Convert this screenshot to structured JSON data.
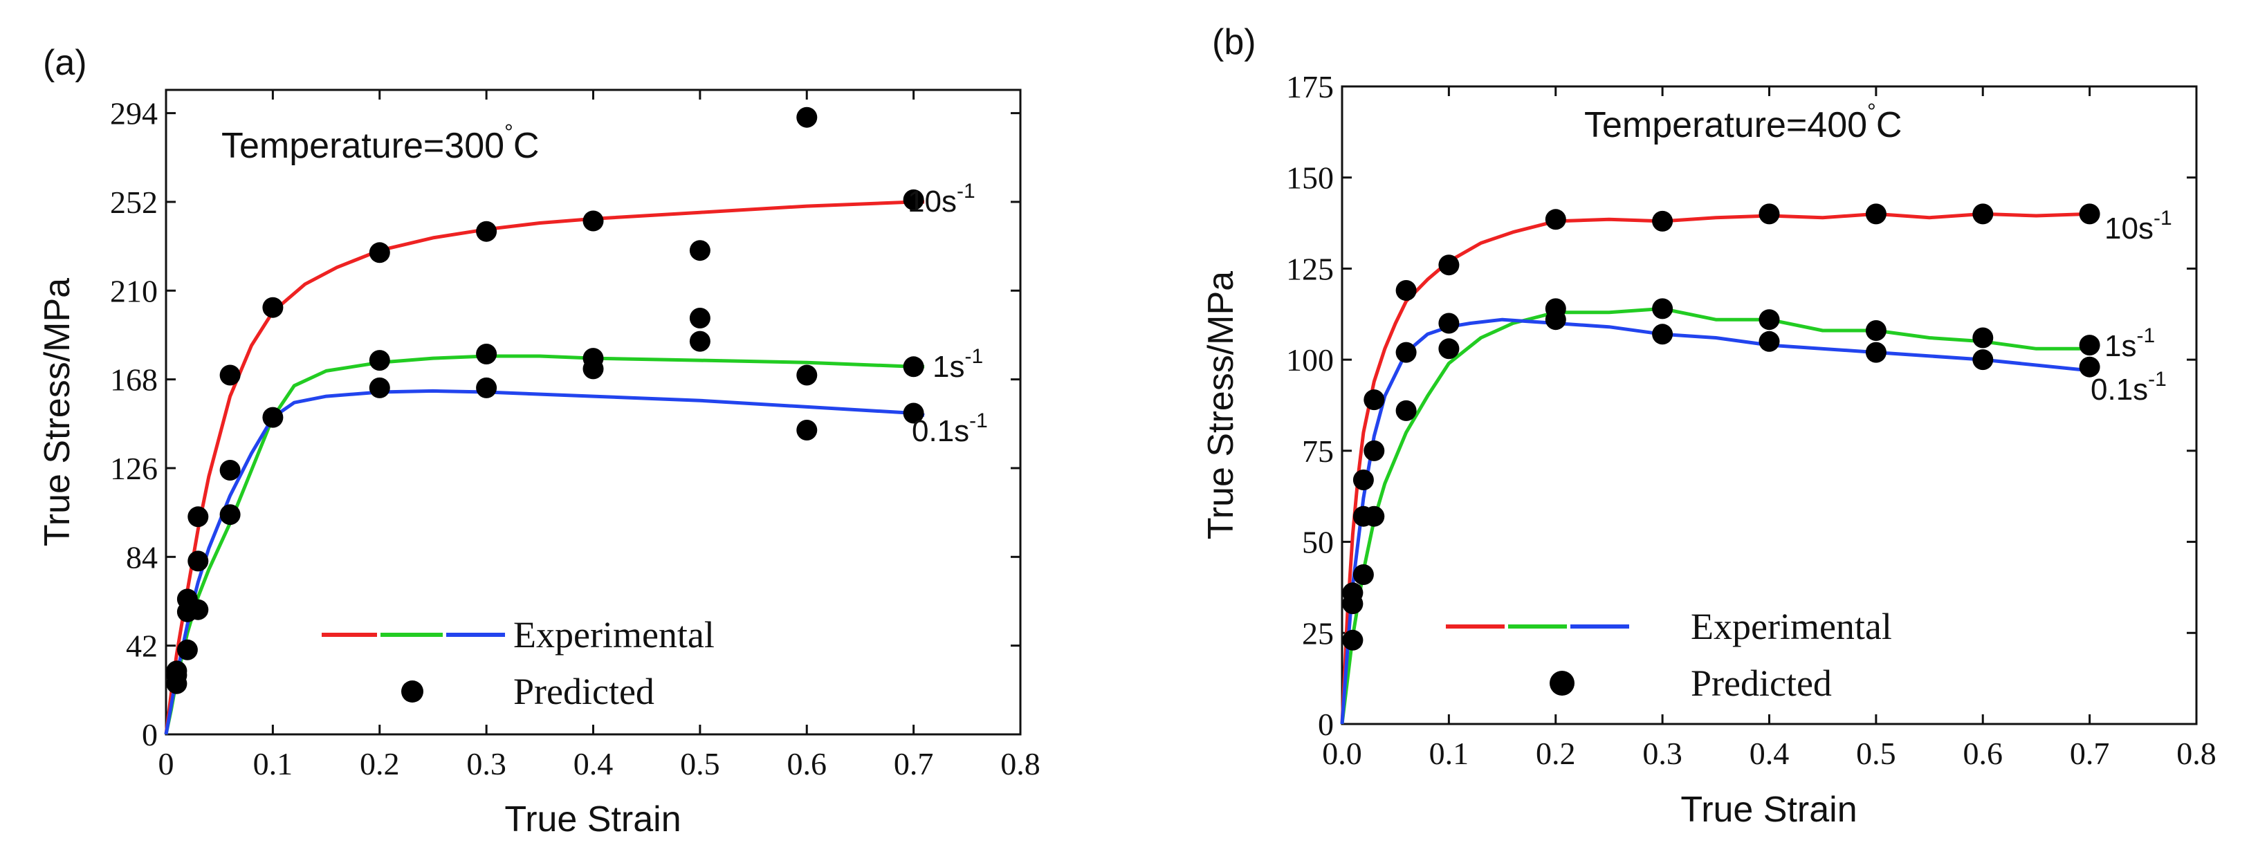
{
  "chart_data": [
    {
      "panel_label": "(a)",
      "type": "line",
      "annotation": "Temperature=300",
      "annotation_unit": "C",
      "degree": "°",
      "xlabel": "True Strain",
      "ylabel": "True Stress/MPa",
      "xlim": [
        0,
        0.8
      ],
      "ylim": [
        0,
        305
      ],
      "x_ticks": [
        0,
        0.1,
        0.2,
        0.3,
        0.4,
        0.5,
        0.6,
        0.7,
        0.8
      ],
      "x_tick_labels": [
        "0",
        "0.1",
        "0.2",
        "0.3",
        "0.4",
        "0.5",
        "0.6",
        "0.7",
        "0.8"
      ],
      "y_ticks": [
        0,
        42,
        84,
        126,
        168,
        210,
        252,
        294
      ],
      "y_tick_labels": [
        "0",
        "42",
        "84",
        "126",
        "168",
        "210",
        "252",
        "294"
      ],
      "series": [
        {
          "name": "10s-1",
          "rate": "10s",
          "sup": "-1",
          "color": "#ee2222",
          "x": [
            0,
            0.005,
            0.01,
            0.02,
            0.03,
            0.04,
            0.06,
            0.08,
            0.1,
            0.13,
            0.16,
            0.2,
            0.25,
            0.3,
            0.35,
            0.4,
            0.5,
            0.6,
            0.7,
            0.71
          ],
          "y": [
            0,
            20,
            38,
            68,
            97,
            122,
            160,
            184,
            200,
            213,
            221,
            229,
            235,
            239,
            242,
            244,
            247,
            250,
            252,
            252
          ],
          "predicted_x": [
            0.01,
            0.02,
            0.03,
            0.06,
            0.1,
            0.2,
            0.3,
            0.4,
            0.5,
            0.5,
            0.5,
            0.6,
            0.7
          ],
          "predicted_y": [
            30,
            64,
            103,
            170,
            202,
            228,
            238,
            243,
            186,
            197,
            229,
            292,
            253
          ]
        },
        {
          "name": "1s-1",
          "rate": "1s",
          "sup": "-1",
          "color": "#22cc22",
          "x": [
            0,
            0.005,
            0.01,
            0.02,
            0.03,
            0.04,
            0.06,
            0.08,
            0.1,
            0.12,
            0.15,
            0.2,
            0.25,
            0.3,
            0.35,
            0.4,
            0.5,
            0.6,
            0.7,
            0.71
          ],
          "y": [
            0,
            12,
            26,
            48,
            65,
            78,
            100,
            125,
            150,
            165,
            172,
            176,
            178,
            179,
            179,
            178,
            177,
            176,
            174,
            174
          ],
          "predicted_x": [
            0.01,
            0.02,
            0.03,
            0.06,
            0.2,
            0.3,
            0.4,
            0.4,
            0.7
          ],
          "predicted_y": [
            28,
            58,
            59,
            104,
            177,
            180,
            178,
            173,
            174
          ]
        },
        {
          "name": "0.1s-1",
          "rate": "0.1s",
          "sup": "-1",
          "color": "#2244ee",
          "x": [
            0,
            0.005,
            0.01,
            0.02,
            0.03,
            0.04,
            0.06,
            0.08,
            0.1,
            0.12,
            0.15,
            0.2,
            0.25,
            0.3,
            0.4,
            0.5,
            0.6,
            0.7,
            0.71
          ],
          "y": [
            0,
            14,
            28,
            52,
            72,
            88,
            113,
            133,
            150,
            157,
            160,
            162,
            162.5,
            162,
            160,
            158,
            155,
            152,
            151
          ],
          "predicted_x": [
            0.01,
            0.02,
            0.03,
            0.06,
            0.1,
            0.2,
            0.3,
            0.6,
            0.6,
            0.7
          ],
          "predicted_y": [
            24,
            40,
            82,
            125,
            150,
            164,
            164,
            144,
            170,
            152
          ]
        }
      ],
      "legend": {
        "line_label": "Experimental",
        "marker_label": "Predicted",
        "position": "lower-center"
      }
    },
    {
      "panel_label": "(b)",
      "type": "line",
      "annotation": "Temperature=400",
      "annotation_unit": "C",
      "degree": "°",
      "xlabel": "True Strain",
      "ylabel": "True Stress/MPa",
      "xlim": [
        0,
        0.8
      ],
      "ylim": [
        0,
        175
      ],
      "x_ticks": [
        0,
        0.1,
        0.2,
        0.3,
        0.4,
        0.5,
        0.6,
        0.7,
        0.8
      ],
      "x_tick_labels": [
        "0.0",
        "0.1",
        "0.2",
        "0.3",
        "0.4",
        "0.5",
        "0.6",
        "0.7",
        "0.8"
      ],
      "y_ticks": [
        0,
        25,
        50,
        75,
        100,
        125,
        150,
        175
      ],
      "y_tick_labels": [
        "0",
        "25",
        "50",
        "75",
        "100",
        "125",
        "150",
        "175"
      ],
      "series": [
        {
          "name": "10s-1",
          "rate": "10s",
          "sup": "-1",
          "color": "#ee2222",
          "x": [
            0,
            0.005,
            0.01,
            0.015,
            0.02,
            0.03,
            0.04,
            0.05,
            0.06,
            0.08,
            0.1,
            0.13,
            0.16,
            0.2,
            0.25,
            0.3,
            0.35,
            0.4,
            0.45,
            0.5,
            0.55,
            0.6,
            0.65,
            0.7
          ],
          "y": [
            0,
            30,
            52,
            68,
            80,
            94,
            103,
            110,
            116,
            122,
            127,
            132,
            135,
            138,
            138.5,
            138,
            139,
            139.5,
            139,
            140,
            139,
            140,
            139.5,
            140
          ],
          "predicted_x": [
            0.01,
            0.02,
            0.03,
            0.06,
            0.1,
            0.2,
            0.3,
            0.4,
            0.5,
            0.6,
            0.7
          ],
          "predicted_y": [
            36,
            67,
            89,
            119,
            126,
            138.5,
            138,
            140,
            140,
            140,
            140
          ]
        },
        {
          "name": "1s-1",
          "rate": "1s",
          "sup": "-1",
          "color": "#22cc22",
          "x": [
            0,
            0.005,
            0.01,
            0.02,
            0.03,
            0.04,
            0.06,
            0.08,
            0.1,
            0.13,
            0.16,
            0.2,
            0.25,
            0.3,
            0.35,
            0.4,
            0.45,
            0.5,
            0.55,
            0.6,
            0.65,
            0.7
          ],
          "y": [
            0,
            12,
            24,
            42,
            56,
            66,
            80,
            90,
            99,
            106,
            110,
            113,
            113,
            114,
            111,
            111,
            108,
            108,
            106,
            105,
            103,
            103
          ],
          "predicted_x": [
            0.01,
            0.02,
            0.03,
            0.06,
            0.1,
            0.2,
            0.3,
            0.4,
            0.5,
            0.6,
            0.7
          ],
          "predicted_y": [
            23,
            41,
            57,
            86,
            103,
            114,
            114,
            111,
            108,
            106,
            104
          ]
        },
        {
          "name": "0.1s-1",
          "rate": "0.1s",
          "sup": "-1",
          "color": "#2244ee",
          "x": [
            0,
            0.005,
            0.01,
            0.02,
            0.03,
            0.04,
            0.06,
            0.08,
            0.1,
            0.12,
            0.15,
            0.2,
            0.25,
            0.3,
            0.35,
            0.4,
            0.5,
            0.6,
            0.7
          ],
          "y": [
            0,
            20,
            38,
            62,
            79,
            90,
            102,
            107,
            109,
            110,
            111,
            110,
            109,
            107,
            106,
            104,
            102,
            100,
            97
          ],
          "predicted_x": [
            0.01,
            0.02,
            0.03,
            0.06,
            0.1,
            0.2,
            0.3,
            0.4,
            0.5,
            0.6,
            0.7
          ],
          "predicted_y": [
            33,
            57,
            75,
            102,
            110,
            111,
            107,
            105,
            102,
            100,
            98
          ]
        }
      ],
      "legend": {
        "line_label": "Experimental",
        "marker_label": "Predicted",
        "position": "lower-center"
      }
    }
  ]
}
